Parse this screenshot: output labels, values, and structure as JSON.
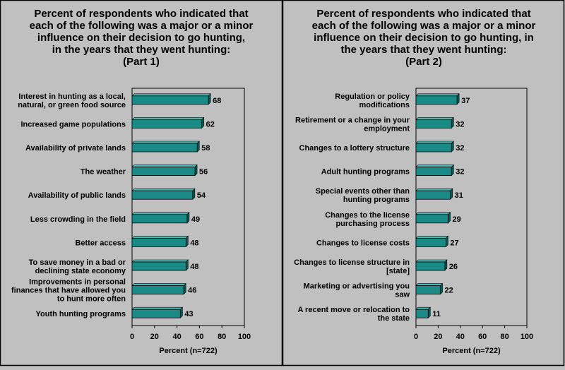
{
  "chart_data": [
    {
      "type": "bar",
      "orientation": "horizontal",
      "title_lines": [
        "Percent of respondents who indicated that",
        "each of the following was a major or a minor",
        "influence on their decision to go hunting,",
        "in the years that they went hunting:",
        "(Part 1)"
      ],
      "xlabel": "Percent (n=722)",
      "xlim": [
        0,
        100
      ],
      "xticks": [
        "0",
        "20",
        "40",
        "60",
        "80",
        "100"
      ],
      "grid": false,
      "bar_color": "#1a8a86",
      "categories": [
        [
          "Interest in hunting as a local,",
          "natural, or green food source"
        ],
        [
          "Increased game populations"
        ],
        [
          "Availability of private lands"
        ],
        [
          "The weather"
        ],
        [
          "Availability of public lands"
        ],
        [
          "Less crowding in the field"
        ],
        [
          "Better access"
        ],
        [
          "To save money in a bad or",
          "declining state economy"
        ],
        [
          "Improvements in personal",
          "finances that have allowed you",
          "to hunt more often"
        ],
        [
          "Youth hunting programs"
        ]
      ],
      "values": [
        68,
        62,
        58,
        56,
        54,
        49,
        48,
        48,
        46,
        43
      ]
    },
    {
      "type": "bar",
      "orientation": "horizontal",
      "title_lines": [
        "Percent of respondents who indicated that",
        "each of the following was a major or a minor",
        "influence on their decision to go hunting, in",
        "the years that they went hunting:",
        "(Part 2)"
      ],
      "xlabel": "Percent (n=722)",
      "xlim": [
        0,
        100
      ],
      "xticks": [
        "0",
        "20",
        "40",
        "60",
        "80",
        "100"
      ],
      "grid": false,
      "bar_color": "#1a8a86",
      "categories": [
        [
          "Regulation or policy",
          "modifications"
        ],
        [
          "Retirement or a change in your",
          "employment"
        ],
        [
          "Changes to a lottery structure"
        ],
        [
          "Adult hunting programs"
        ],
        [
          "Special events other than",
          "hunting programs"
        ],
        [
          "Changes to the license",
          "purchasing process"
        ],
        [
          "Changes to license costs"
        ],
        [
          "Changes to license structure in",
          "[state]"
        ],
        [
          "Marketing or advertising you",
          "saw"
        ],
        [
          "A recent move or relocation to",
          "the state"
        ]
      ],
      "values": [
        37,
        32,
        32,
        32,
        31,
        29,
        27,
        26,
        22,
        11
      ]
    }
  ]
}
